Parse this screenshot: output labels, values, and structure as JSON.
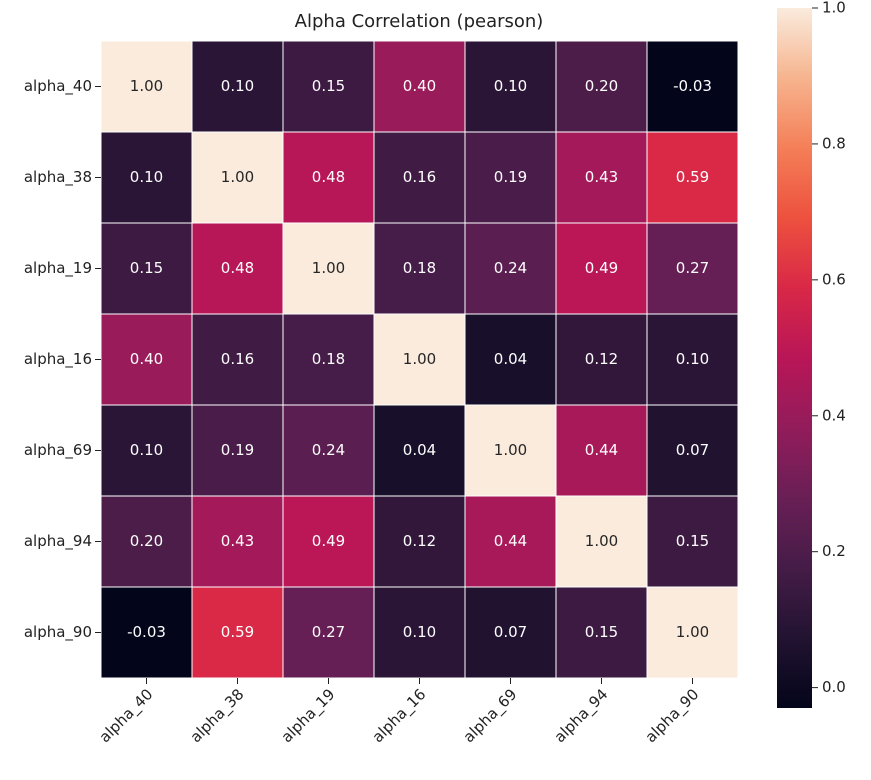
{
  "chart_data": {
    "type": "heatmap",
    "title": "Alpha Correlation (pearson)",
    "x_categories": [
      "alpha_40",
      "alpha_38",
      "alpha_19",
      "alpha_16",
      "alpha_69",
      "alpha_94",
      "alpha_90"
    ],
    "y_categories": [
      "alpha_40",
      "alpha_38",
      "alpha_19",
      "alpha_16",
      "alpha_69",
      "alpha_94",
      "alpha_90"
    ],
    "values": [
      [
        1.0,
        0.1,
        0.15,
        0.4,
        0.1,
        0.2,
        -0.03
      ],
      [
        0.1,
        1.0,
        0.48,
        0.16,
        0.19,
        0.43,
        0.59
      ],
      [
        0.15,
        0.48,
        1.0,
        0.18,
        0.24,
        0.49,
        0.27
      ],
      [
        0.4,
        0.16,
        0.18,
        1.0,
        0.04,
        0.12,
        0.1
      ],
      [
        0.1,
        0.19,
        0.24,
        0.04,
        1.0,
        0.44,
        0.07
      ],
      [
        0.2,
        0.43,
        0.49,
        0.12,
        0.44,
        1.0,
        0.15
      ],
      [
        -0.03,
        0.59,
        0.27,
        0.1,
        0.07,
        0.15,
        1.0
      ]
    ],
    "value_labels": [
      [
        "1.00",
        "0.10",
        "0.15",
        "0.40",
        "0.10",
        "0.20",
        "-0.03"
      ],
      [
        "0.10",
        "1.00",
        "0.48",
        "0.16",
        "0.19",
        "0.43",
        "0.59"
      ],
      [
        "0.15",
        "0.48",
        "1.00",
        "0.18",
        "0.24",
        "0.49",
        "0.27"
      ],
      [
        "0.40",
        "0.16",
        "0.18",
        "1.00",
        "0.04",
        "0.12",
        "0.10"
      ],
      [
        "0.10",
        "0.19",
        "0.24",
        "0.04",
        "1.00",
        "0.44",
        "0.07"
      ],
      [
        "0.20",
        "0.43",
        "0.49",
        "0.12",
        "0.44",
        "1.00",
        "0.15"
      ],
      [
        "-0.03",
        "0.59",
        "0.27",
        "0.10",
        "0.07",
        "0.15",
        "1.00"
      ]
    ],
    "clim": [
      -0.03,
      1.0
    ],
    "cticks": [
      {
        "value": 0,
        "label": "0.0"
      },
      {
        "value": 0.2,
        "label": "0.2"
      },
      {
        "value": 0.4,
        "label": "0.4"
      },
      {
        "value": 0.6,
        "label": "0.6"
      },
      {
        "value": 0.8,
        "label": "0.8"
      },
      {
        "value": 1,
        "label": "1.0"
      }
    ],
    "colormap": [
      "#03051a",
      "#221331",
      "#451c47",
      "#691f55",
      "#921c5b",
      "#b91657",
      "#d92847",
      "#ed513e",
      "#f47f58",
      "#f6b48e",
      "#faebdd"
    ]
  }
}
